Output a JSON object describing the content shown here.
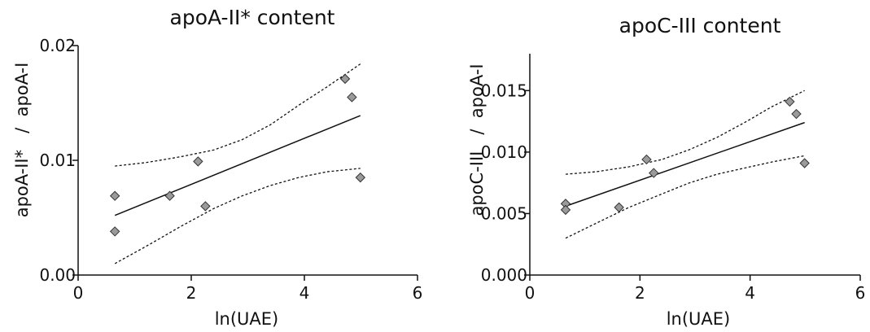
{
  "chart_data": [
    {
      "type": "scatter",
      "title": "apoA-II* content",
      "xlabel": "ln(UAE)",
      "ylabel": "apoA-II*   /  apoA-I",
      "xlim": [
        0,
        6
      ],
      "ylim": [
        0,
        0.02
      ],
      "x_ticks": [
        0,
        2,
        4,
        6
      ],
      "x_tick_labels": [
        "0",
        "2",
        "4",
        "6"
      ],
      "y_ticks": [
        0,
        0.01,
        0.02
      ],
      "y_tick_labels": [
        "0.00",
        "0.01",
        "0.02"
      ],
      "grid": false,
      "points": [
        {
          "x": 0.65,
          "y": 0.0069
        },
        {
          "x": 0.65,
          "y": 0.0038
        },
        {
          "x": 1.62,
          "y": 0.0069
        },
        {
          "x": 2.12,
          "y": 0.0099
        },
        {
          "x": 2.25,
          "y": 0.006
        },
        {
          "x": 4.72,
          "y": 0.0171
        },
        {
          "x": 4.84,
          "y": 0.0155
        },
        {
          "x": 4.99,
          "y": 0.0085
        }
      ],
      "regression": {
        "x": [
          0.65,
          4.99
        ],
        "y": [
          0.0052,
          0.0139
        ]
      },
      "ci_upper": {
        "x": [
          0.65,
          1.2,
          1.8,
          2.4,
          2.9,
          3.4,
          3.9,
          4.4,
          4.99
        ],
        "y": [
          0.0095,
          0.0098,
          0.0103,
          0.0109,
          0.0118,
          0.0131,
          0.0148,
          0.0164,
          0.0184
        ]
      },
      "ci_lower": {
        "x": [
          0.65,
          1.2,
          1.8,
          2.4,
          2.9,
          3.4,
          3.9,
          4.4,
          4.99
        ],
        "y": [
          0.001,
          0.0025,
          0.0042,
          0.0058,
          0.0069,
          0.0078,
          0.0085,
          0.009,
          0.0093
        ]
      }
    },
    {
      "type": "scatter",
      "title": "apoC-III content",
      "xlabel": "ln(UAE)",
      "ylabel": "apoC-III   /  apoA-I",
      "xlim": [
        0,
        6
      ],
      "ylim": [
        0,
        0.018
      ],
      "x_ticks": [
        0,
        2,
        4,
        6
      ],
      "x_tick_labels": [
        "0",
        "2",
        "4",
        "6"
      ],
      "y_ticks": [
        0,
        0.005,
        0.01,
        0.015
      ],
      "y_tick_labels": [
        "0.000",
        "0.005",
        "0.010",
        "0.015"
      ],
      "grid": false,
      "points": [
        {
          "x": 0.65,
          "y": 0.0058
        },
        {
          "x": 0.65,
          "y": 0.0053
        },
        {
          "x": 1.62,
          "y": 0.0055
        },
        {
          "x": 2.12,
          "y": 0.0094
        },
        {
          "x": 2.25,
          "y": 0.0083
        },
        {
          "x": 4.72,
          "y": 0.0141
        },
        {
          "x": 4.84,
          "y": 0.0131
        },
        {
          "x": 4.99,
          "y": 0.0091
        }
      ],
      "regression": {
        "x": [
          0.65,
          4.99
        ],
        "y": [
          0.0056,
          0.0124
        ]
      },
      "ci_upper": {
        "x": [
          0.65,
          1.2,
          1.8,
          2.4,
          2.9,
          3.4,
          3.9,
          4.4,
          4.99
        ],
        "y": [
          0.0082,
          0.0084,
          0.0088,
          0.0094,
          0.0102,
          0.0112,
          0.0124,
          0.0137,
          0.015
        ]
      },
      "ci_lower": {
        "x": [
          0.65,
          1.2,
          1.8,
          2.4,
          2.9,
          3.4,
          3.9,
          4.4,
          4.99
        ],
        "y": [
          0.003,
          0.0042,
          0.0055,
          0.0066,
          0.0075,
          0.0082,
          0.0087,
          0.0092,
          0.0097
        ]
      }
    }
  ]
}
